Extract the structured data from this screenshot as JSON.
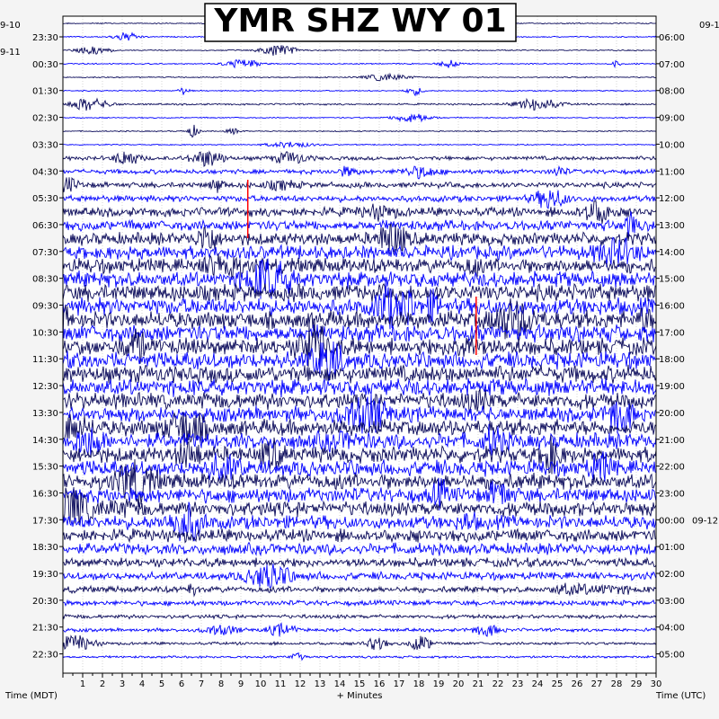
{
  "chart_data": {
    "type": "helicorder",
    "title": "YMR SHZ WY 01",
    "xlabel": "+ Minutes",
    "x_ticks": [
      "1",
      "2",
      "3",
      "4",
      "5",
      "6",
      "7",
      "8",
      "9",
      "10",
      "11",
      "12",
      "13",
      "14",
      "15",
      "16",
      "17",
      "18",
      "19",
      "20",
      "21",
      "22",
      "23",
      "24",
      "25",
      "26",
      "27",
      "28",
      "29",
      "30"
    ],
    "xlim": [
      0,
      30
    ],
    "left_axis_label": "Time (MDT)",
    "right_axis_label": "Time (UTC)",
    "left_dates": [
      "9-10",
      "9-11"
    ],
    "right_dates": [
      "09-1",
      "09-12"
    ],
    "left_times": [
      "23:30",
      "00:30",
      "01:30",
      "02:30",
      "03:30",
      "04:30",
      "05:30",
      "06:30",
      "07:30",
      "08:30",
      "09:30",
      "10:30",
      "11:30",
      "12:30",
      "13:30",
      "14:30",
      "15:30",
      "16:30",
      "17:30",
      "18:30",
      "19:30",
      "20:30",
      "21:30",
      "22:30"
    ],
    "right_times": [
      "06:00",
      "07:00",
      "08:00",
      "09:00",
      "10:00",
      "11:00",
      "12:00",
      "13:00",
      "14:00",
      "15:00",
      "16:00",
      "17:00",
      "18:00",
      "19:00",
      "20:00",
      "21:00",
      "22:00",
      "23:00",
      "00:00",
      "01:00",
      "02:00",
      "03:00",
      "04:00",
      "05:00"
    ],
    "trace_colors": [
      "#0a0a5a",
      "#0000ff"
    ],
    "clip_color": "#ff0000",
    "rows": 48,
    "activity_levels": [
      0.1,
      0.1,
      0.1,
      0.1,
      0.1,
      0.1,
      0.15,
      0.1,
      0.1,
      0.1,
      0.35,
      0.4,
      0.5,
      0.55,
      0.8,
      0.9,
      1.1,
      1.2,
      1.3,
      1.4,
      1.5,
      1.5,
      1.5,
      1.5,
      1.5,
      1.5,
      1.5,
      1.5,
      1.4,
      1.3,
      1.4,
      1.4,
      1.4,
      1.4,
      1.4,
      1.3,
      1.3,
      1.2,
      1.1,
      1.0,
      0.8,
      0.7,
      0.55,
      0.45,
      0.35,
      0.3,
      0.25,
      0.2
    ],
    "grid": true
  }
}
